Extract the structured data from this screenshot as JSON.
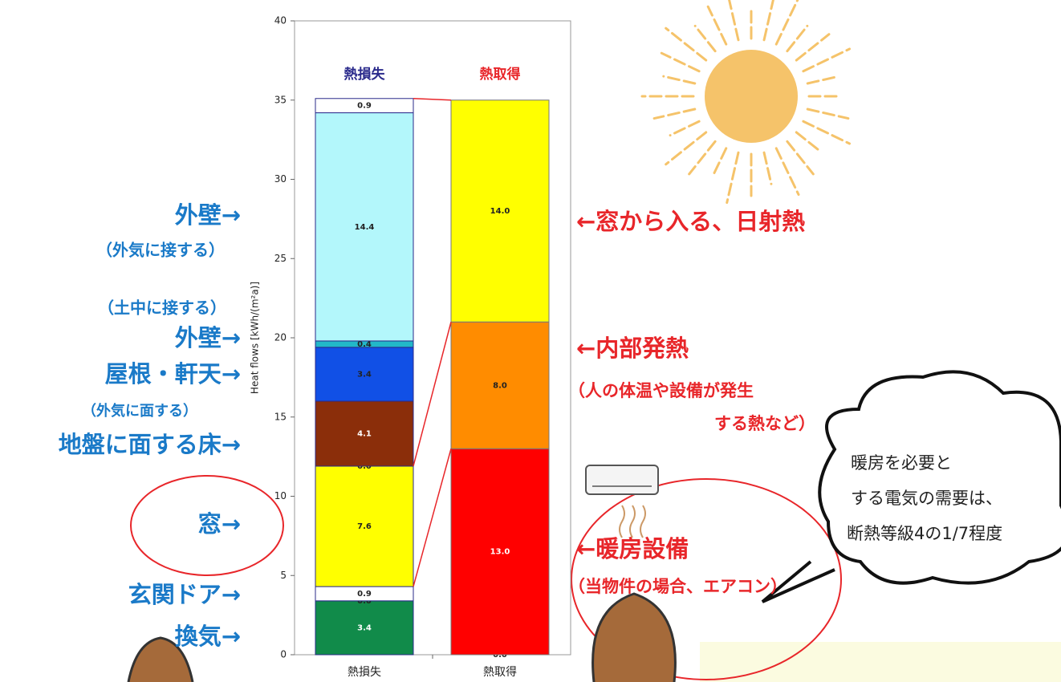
{
  "chart_data": {
    "type": "stacked_bar",
    "ylabel": "Heat flows [kWh/(m²a)]",
    "categories": [
      "熱損失",
      "熱取得"
    ],
    "column_headers": [
      {
        "text": "熱損失",
        "color": "#2b2b8c"
      },
      {
        "text": "熱取得",
        "color": "#e8262a"
      }
    ],
    "ylim": [
      0,
      40
    ],
    "yticks": [
      0,
      5,
      10,
      15,
      20,
      25,
      30,
      35,
      40
    ],
    "grid": false,
    "series": [
      {
        "color": "#118b4a",
        "label_color": "#ffffff",
        "values": [
          3.4,
          null
        ],
        "value_labels": [
          "3.4",
          null
        ]
      },
      {
        "color": "#ffff00",
        "label_color": "#222222",
        "values": [
          0,
          null
        ],
        "value_labels": [
          "0.0",
          null
        ]
      },
      {
        "color": "#ffffff",
        "label_color": "#222222",
        "values": [
          0.9,
          null
        ],
        "value_labels": [
          "0.9",
          null
        ]
      },
      {
        "color": "#ffff00",
        "label_color": "#222222",
        "values": [
          7.6,
          null
        ],
        "value_labels": [
          "7.6",
          null
        ]
      },
      {
        "color": "#ffff00",
        "label_color": "#222222",
        "values": [
          0,
          null
        ],
        "value_labels": [
          "0.0",
          null
        ]
      },
      {
        "color": "#8b2e0a",
        "label_color": "#ffffff",
        "values": [
          4.1,
          null
        ],
        "value_labels": [
          "4.1",
          null
        ]
      },
      {
        "color": "#1150e6",
        "label_color": "#222222",
        "values": [
          3.4,
          null
        ],
        "value_labels": [
          "3.4",
          null
        ]
      },
      {
        "color": "#22b8c8",
        "label_color": "#222222",
        "values": [
          0.4,
          null
        ],
        "value_labels": [
          "0.4",
          null
        ]
      },
      {
        "color": "#b3f7fb",
        "label_color": "#222222",
        "values": [
          14.4,
          null
        ],
        "value_labels": [
          "14.4",
          null
        ]
      },
      {
        "color": "#ffffff",
        "label_color": "#222222",
        "values": [
          0.9,
          null
        ],
        "value_labels": [
          "0.9",
          null
        ]
      },
      {
        "color": "#ff0000",
        "label_color": "#222222",
        "values": [
          null,
          0
        ],
        "value_labels": [
          null,
          "0.0"
        ]
      },
      {
        "color": "#ff0000",
        "label_color": "#ffffff",
        "values": [
          null,
          13
        ],
        "value_labels": [
          null,
          "13.0"
        ]
      },
      {
        "color": "#ff8c00",
        "label_color": "#222222",
        "values": [
          null,
          8
        ],
        "value_labels": [
          null,
          "8.0"
        ]
      },
      {
        "color": "#ffff00",
        "label_color": "#222222",
        "values": [
          null,
          14
        ],
        "value_labels": [
          null,
          "14.0"
        ]
      }
    ]
  },
  "annotations": {
    "left": [
      "外壁→",
      "（外気に接する）",
      "（土中に接する）",
      "外壁→",
      "屋根・軒天→",
      "（外気に面する）",
      "地盤に面する床→",
      "窓→",
      "玄関ドア→",
      "換気→"
    ],
    "right": [
      "←窓から入る、日射熱",
      "←内部発熱",
      "（人の体温や設備が発生",
      "する熱など）",
      "←暖房設備",
      "（当物件の場合、エアコン）"
    ],
    "bubble": [
      "暖房を必要と",
      "する電気の需要は、",
      "断熱等級4の1/7程度"
    ]
  }
}
